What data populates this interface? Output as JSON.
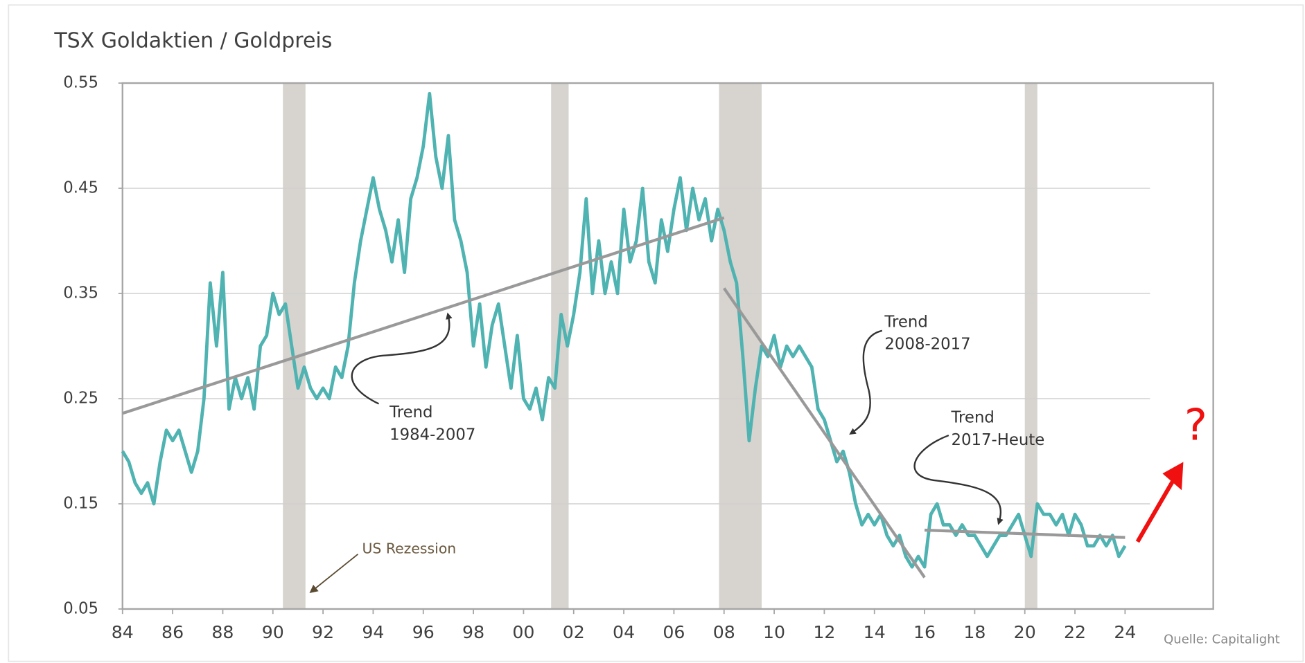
{
  "chart_data": {
    "type": "line",
    "title": "TSX Goldaktien / Goldpreis",
    "source": "Quelle: Capitalight",
    "x": [
      1984,
      1984.25,
      1984.5,
      1984.75,
      1985,
      1985.25,
      1985.5,
      1985.75,
      1986,
      1986.25,
      1986.5,
      1986.75,
      1987,
      1987.25,
      1987.5,
      1987.75,
      1988,
      1988.25,
      1988.5,
      1988.75,
      1989,
      1989.25,
      1989.5,
      1989.75,
      1990,
      1990.25,
      1990.5,
      1990.75,
      1991,
      1991.25,
      1991.5,
      1991.75,
      1992,
      1992.25,
      1992.5,
      1992.75,
      1993,
      1993.25,
      1993.5,
      1993.75,
      1994,
      1994.25,
      1994.5,
      1994.75,
      1995,
      1995.25,
      1995.5,
      1995.75,
      1996,
      1996.25,
      1996.5,
      1996.75,
      1997,
      1997.25,
      1997.5,
      1997.75,
      1998,
      1998.25,
      1998.5,
      1998.75,
      1999,
      1999.25,
      1999.5,
      1999.75,
      2000,
      2000.25,
      2000.5,
      2000.75,
      2001,
      2001.25,
      2001.5,
      2001.75,
      2002,
      2002.25,
      2002.5,
      2002.75,
      2003,
      2003.25,
      2003.5,
      2003.75,
      2004,
      2004.25,
      2004.5,
      2004.75,
      2005,
      2005.25,
      2005.5,
      2005.75,
      2006,
      2006.25,
      2006.5,
      2006.75,
      2007,
      2007.25,
      2007.5,
      2007.75,
      2008,
      2008.25,
      2008.5,
      2008.75,
      2009,
      2009.25,
      2009.5,
      2009.75,
      2010,
      2010.25,
      2010.5,
      2010.75,
      2011,
      2011.25,
      2011.5,
      2011.75,
      2012,
      2012.25,
      2012.5,
      2012.75,
      2013,
      2013.25,
      2013.5,
      2013.75,
      2014,
      2014.25,
      2014.5,
      2014.75,
      2015,
      2015.25,
      2015.5,
      2015.75,
      2016,
      2016.25,
      2016.5,
      2016.75,
      2017,
      2017.25,
      2017.5,
      2017.75,
      2018,
      2018.25,
      2018.5,
      2018.75,
      2019,
      2019.25,
      2019.5,
      2019.75,
      2020,
      2020.25,
      2020.5,
      2020.75,
      2021,
      2021.25,
      2021.5,
      2021.75,
      2022,
      2022.25,
      2022.5,
      2022.75,
      2023,
      2023.25,
      2023.5,
      2023.75,
      2024
    ],
    "series": [
      {
        "color": "#4fb3b2",
        "values": [
          0.2,
          0.19,
          0.17,
          0.16,
          0.17,
          0.15,
          0.19,
          0.22,
          0.21,
          0.22,
          0.2,
          0.18,
          0.2,
          0.25,
          0.36,
          0.3,
          0.37,
          0.24,
          0.27,
          0.25,
          0.27,
          0.24,
          0.3,
          0.31,
          0.35,
          0.33,
          0.34,
          0.3,
          0.26,
          0.28,
          0.26,
          0.25,
          0.26,
          0.25,
          0.28,
          0.27,
          0.3,
          0.36,
          0.4,
          0.43,
          0.46,
          0.43,
          0.41,
          0.38,
          0.42,
          0.37,
          0.44,
          0.46,
          0.49,
          0.54,
          0.48,
          0.45,
          0.5,
          0.42,
          0.4,
          0.37,
          0.3,
          0.34,
          0.28,
          0.32,
          0.34,
          0.3,
          0.26,
          0.31,
          0.25,
          0.24,
          0.26,
          0.23,
          0.27,
          0.26,
          0.33,
          0.3,
          0.33,
          0.37,
          0.44,
          0.35,
          0.4,
          0.35,
          0.38,
          0.35,
          0.43,
          0.38,
          0.4,
          0.45,
          0.38,
          0.36,
          0.42,
          0.39,
          0.43,
          0.46,
          0.41,
          0.45,
          0.42,
          0.44,
          0.4,
          0.43,
          0.41,
          0.38,
          0.36,
          0.29,
          0.21,
          0.26,
          0.3,
          0.29,
          0.31,
          0.28,
          0.3,
          0.29,
          0.3,
          0.29,
          0.28,
          0.24,
          0.23,
          0.21,
          0.19,
          0.2,
          0.18,
          0.15,
          0.13,
          0.14,
          0.13,
          0.14,
          0.12,
          0.11,
          0.12,
          0.1,
          0.09,
          0.1,
          0.09,
          0.14,
          0.15,
          0.13,
          0.13,
          0.12,
          0.13,
          0.12,
          0.12,
          0.11,
          0.1,
          0.11,
          0.12,
          0.12,
          0.13,
          0.14,
          0.12,
          0.1,
          0.15,
          0.14,
          0.14,
          0.13,
          0.14,
          0.12,
          0.14,
          0.13,
          0.11,
          0.11,
          0.12,
          0.11,
          0.12,
          0.1,
          0.11
        ]
      }
    ],
    "xlim": [
      1984,
      2024
    ],
    "xticks": [
      {
        "value": 1984,
        "label": "84"
      },
      {
        "value": 1986,
        "label": "86"
      },
      {
        "value": 1988,
        "label": "88"
      },
      {
        "value": 1990,
        "label": "90"
      },
      {
        "value": 1992,
        "label": "92"
      },
      {
        "value": 1994,
        "label": "94"
      },
      {
        "value": 1996,
        "label": "96"
      },
      {
        "value": 1998,
        "label": "98"
      },
      {
        "value": 2000,
        "label": "00"
      },
      {
        "value": 2002,
        "label": "02"
      },
      {
        "value": 2004,
        "label": "04"
      },
      {
        "value": 2006,
        "label": "06"
      },
      {
        "value": 2008,
        "label": "08"
      },
      {
        "value": 2010,
        "label": "10"
      },
      {
        "value": 2012,
        "label": "12"
      },
      {
        "value": 2014,
        "label": "14"
      },
      {
        "value": 2016,
        "label": "16"
      },
      {
        "value": 2018,
        "label": "18"
      },
      {
        "value": 2020,
        "label": "20"
      },
      {
        "value": 2022,
        "label": "22"
      },
      {
        "value": 2024,
        "label": "24"
      }
    ],
    "ylim": [
      0.05,
      0.55
    ],
    "yticks": [
      0.05,
      0.15,
      0.25,
      0.35,
      0.45,
      0.55
    ],
    "grid": true,
    "recessions": [
      [
        1990.4,
        1991.3
      ],
      [
        2001.1,
        2001.8
      ],
      [
        2007.8,
        2009.5
      ],
      [
        2020.0,
        2020.5
      ]
    ],
    "recession_label": "US Rezession",
    "trend_lines": [
      {
        "lines": [
          "Trend",
          "1984-2007"
        ],
        "x": [
          1984,
          2008
        ],
        "y": [
          0.236,
          0.422
        ]
      },
      {
        "lines": [
          "Trend",
          "2008-2017"
        ],
        "x": [
          2008,
          2016
        ],
        "y": [
          0.355,
          0.08
        ]
      },
      {
        "lines": [
          "Trend",
          "2017-Heute"
        ],
        "x": [
          2016,
          2024
        ],
        "y": [
          0.125,
          0.118
        ]
      }
    ],
    "question_mark": "?"
  }
}
